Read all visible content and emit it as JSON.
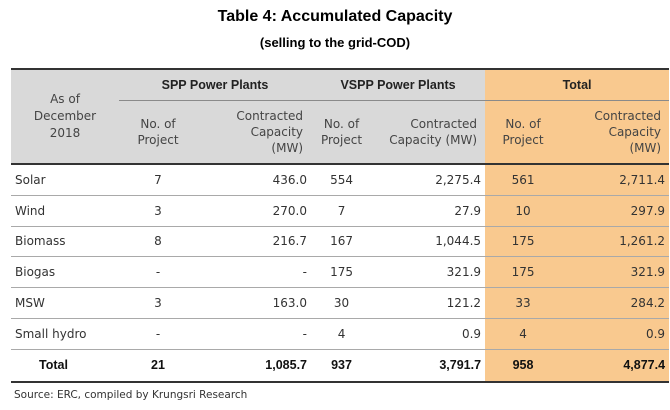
{
  "title": "Table 4: Accumulated Capacity",
  "subtitle": "(selling to the grid-COD)",
  "header": {
    "as_of": [
      "As of",
      "December",
      "2018"
    ],
    "groups": [
      "SPP Power Plants",
      "VSPP Power Plants",
      "Total"
    ],
    "sub": {
      "projects": [
        "No. of",
        "Project"
      ],
      "spp_capacity": [
        "Contracted",
        "Capacity",
        "(MW)"
      ],
      "vspp_projects": [
        "No. of",
        "Project"
      ],
      "vspp_capacity": [
        "Contracted",
        "Capacity (MW)"
      ],
      "total_projects": [
        "No. of",
        "Project"
      ],
      "total_capacity": [
        "Contracted",
        "Capacity",
        "(MW)"
      ]
    }
  },
  "rows": [
    {
      "name": "Solar",
      "spp_n": "7",
      "spp_cap": "436.0",
      "vspp_n": "554",
      "vspp_cap": "2,275.4",
      "tot_n": "561",
      "tot_cap": "2,711.4"
    },
    {
      "name": "Wind",
      "spp_n": "3",
      "spp_cap": "270.0",
      "vspp_n": "7",
      "vspp_cap": "27.9",
      "tot_n": "10",
      "tot_cap": "297.9"
    },
    {
      "name": "Biomass",
      "spp_n": "8",
      "spp_cap": "216.7",
      "vspp_n": "167",
      "vspp_cap": "1,044.5",
      "tot_n": "175",
      "tot_cap": "1,261.2"
    },
    {
      "name": "Biogas",
      "spp_n": "-",
      "spp_cap": "-",
      "vspp_n": "175",
      "vspp_cap": "321.9",
      "tot_n": "175",
      "tot_cap": "321.9"
    },
    {
      "name": "MSW",
      "spp_n": "3",
      "spp_cap": "163.0",
      "vspp_n": "30",
      "vspp_cap": "121.2",
      "tot_n": "33",
      "tot_cap": "284.2"
    },
    {
      "name": "Small hydro",
      "spp_n": "-",
      "spp_cap": "-",
      "vspp_n": "4",
      "vspp_cap": "0.9",
      "tot_n": "4",
      "tot_cap": "0.9"
    }
  ],
  "total_row": {
    "name": "Total",
    "spp_n": "21",
    "spp_cap": "1,085.7",
    "vspp_n": "937",
    "vspp_cap": "3,791.7",
    "tot_n": "958",
    "tot_cap": "4,877.4"
  },
  "source": "Source: ERC, compiled by Krungsri Research",
  "colors": {
    "header_bg": "#d9d9d9",
    "total_col_bg": "#f9c98f"
  }
}
